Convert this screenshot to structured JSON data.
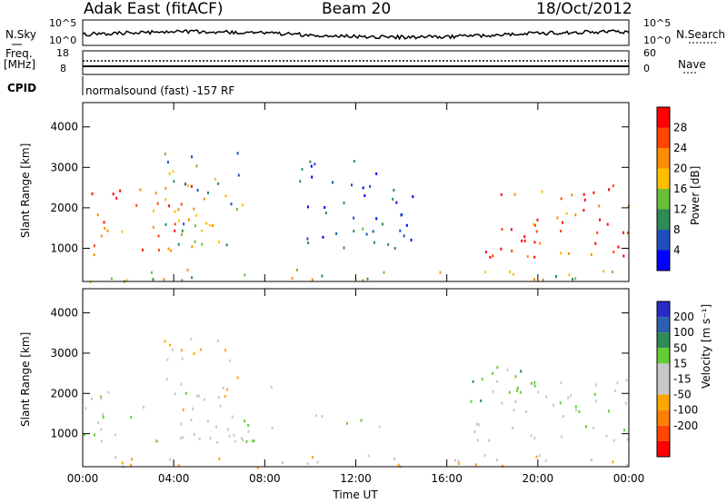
{
  "header": {
    "station": "Adak East (fitACF)",
    "beam": "Beam 20",
    "date": "18/Oct/2012"
  },
  "strip": {
    "nsky_label": "N.Sky",
    "nsky_ticks": [
      "10^5",
      "10^0"
    ],
    "nsearch_label": "N.Search",
    "nsearch_ticks": [
      "10^5",
      "10^0"
    ],
    "freq_label": "Freq.",
    "freq_unit": "[MHz]",
    "freq_ticks": [
      "18",
      "8"
    ],
    "nave_label": "Nave",
    "nave_ticks": [
      "60",
      "0"
    ],
    "cpid_label": "CPID",
    "cpid_value": "normalsound (fast) -157 RF"
  },
  "colors": {
    "power_scale": [
      "#0000ff",
      "#1f4fbf",
      "#2e8b57",
      "#6abf3a",
      "#ffbf00",
      "#ff8c00",
      "#ff4500",
      "#ff0000"
    ],
    "velocity_scale": [
      "#2a2ac8",
      "#2e5fb0",
      "#2e8b57",
      "#66cc33",
      "#c8c8c8",
      "#c8c8c8",
      "#ffa500",
      "#ff7f00",
      "#ff4500",
      "#ff0000"
    ],
    "ground_scatter": "#c8c8c8"
  },
  "chart_data": [
    {
      "type": "heatmap",
      "title": "Power",
      "xlabel": "Time UT",
      "ylabel": "Slant Range [km]",
      "x_ticks": [
        "00:00",
        "04:00",
        "08:00",
        "12:00",
        "16:00",
        "20:00",
        "00:00"
      ],
      "xlim": [
        0,
        24
      ],
      "ylim": [
        180,
        4600
      ],
      "y_ticks": [
        1000,
        2000,
        3000,
        4000
      ],
      "colorbar": {
        "label": "Power [dB]",
        "ticks": [
          4,
          8,
          12,
          16,
          20,
          24,
          28
        ],
        "range": [
          0,
          32
        ]
      },
      "regions": [
        {
          "name": "early-echoes",
          "time_range": [
            0.0,
            5.7
          ],
          "range_km": [
            800,
            2600
          ],
          "power_db": 24
        },
        {
          "name": "dawn-arc",
          "time_range": [
            3.5,
            7.0
          ],
          "range_km": [
            1000,
            3400
          ],
          "power_db": 12
        },
        {
          "name": "midday-sparse",
          "time_range": [
            9.5,
            14.5
          ],
          "range_km": [
            1000,
            3200
          ],
          "power_db": 6
        },
        {
          "name": "near-range-clutter",
          "time_range": [
            0.0,
            24.0
          ],
          "range_km": [
            180,
            500
          ],
          "power_db": 16
        },
        {
          "name": "evening-band",
          "time_range": [
            17.0,
            24.0
          ],
          "range_km": [
            800,
            2600
          ],
          "power_db": 26
        }
      ]
    },
    {
      "type": "heatmap",
      "title": "Velocity",
      "xlabel": "Time UT",
      "ylabel": "Slant Range [km]",
      "x_ticks": [
        "00:00",
        "04:00",
        "08:00",
        "12:00",
        "16:00",
        "20:00",
        "00:00"
      ],
      "xlim": [
        0,
        24
      ],
      "ylim": [
        180,
        4600
      ],
      "y_ticks": [
        1000,
        2000,
        3000,
        4000
      ],
      "colorbar": {
        "label": "Velocity [m s^-1]",
        "ticks": [
          200,
          100,
          50,
          15,
          -15,
          -50,
          -100,
          -200
        ],
        "range": [
          -250,
          250
        ]
      },
      "regions": [
        {
          "name": "early-ground-scatter",
          "time_range": [
            0.0,
            8.5
          ],
          "range_km": [
            800,
            2200
          ],
          "velocity": 0
        },
        {
          "name": "dawn-arc-away",
          "time_range": [
            3.5,
            6.8
          ],
          "range_km": [
            1600,
            3400
          ],
          "velocity": -40
        },
        {
          "name": "midday-sparse",
          "time_range": [
            9.5,
            14.0
          ],
          "range_km": [
            1200,
            1500
          ],
          "velocity": 0
        },
        {
          "name": "near-range-clutter",
          "time_range": [
            0.0,
            24.0
          ],
          "range_km": [
            180,
            500
          ],
          "velocity": -40
        },
        {
          "name": "evening-ground-scatter",
          "time_range": [
            17.0,
            24.0
          ],
          "range_km": [
            800,
            2400
          ],
          "velocity": 0
        },
        {
          "name": "evening-toward",
          "time_range": [
            17.0,
            19.5
          ],
          "range_km": [
            1800,
            3200
          ],
          "velocity": 30
        }
      ]
    }
  ]
}
